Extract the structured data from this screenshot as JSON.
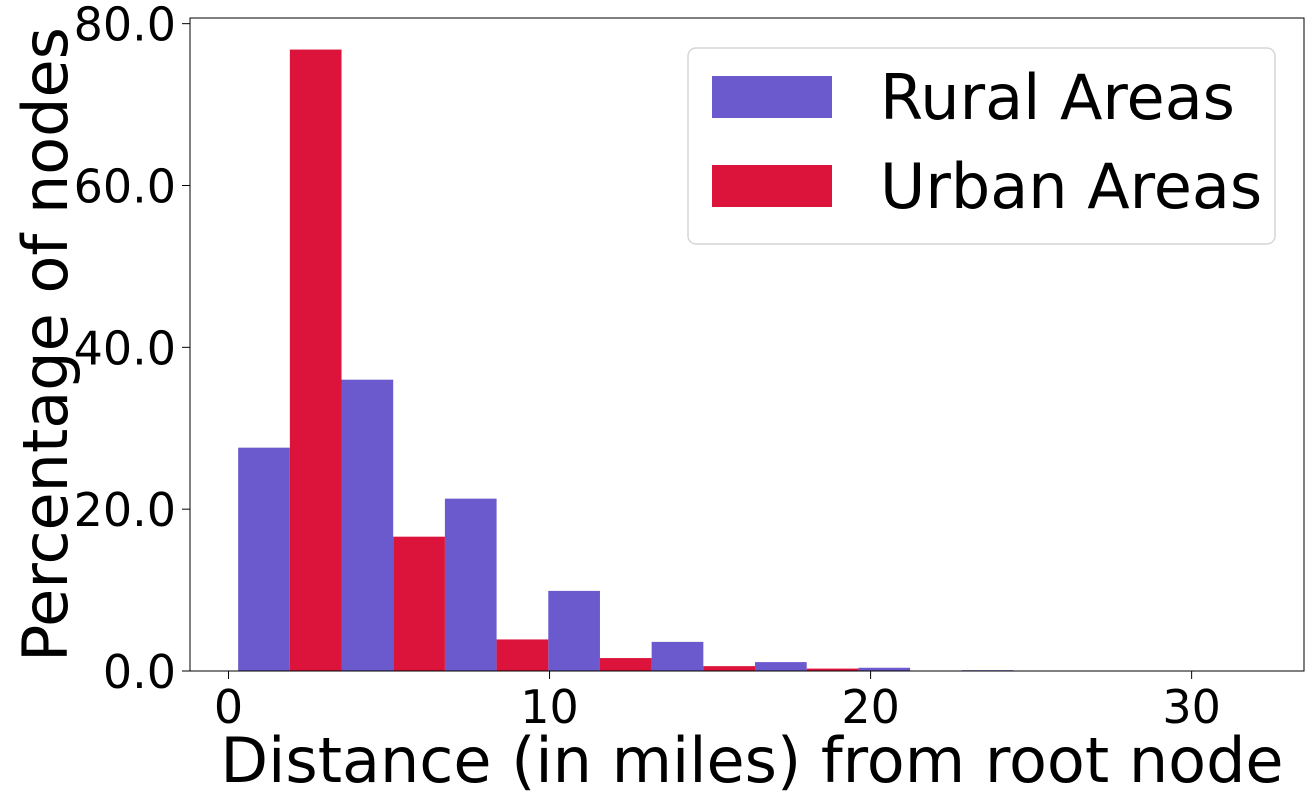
{
  "chart_data": {
    "type": "bar",
    "xlabel": "Distance (in miles) from root node",
    "ylabel": "Percentage of nodes",
    "xlim": [
      -1.2,
      33.5
    ],
    "ylim": [
      0,
      80.7
    ],
    "x_ticks": [
      0,
      10,
      20,
      30
    ],
    "x_tick_labels": [
      "0",
      "10",
      "20",
      "30"
    ],
    "y_ticks": [
      0,
      20,
      40,
      60,
      80
    ],
    "y_tick_labels": [
      "0.0",
      "20.0",
      "40.0",
      "60.0",
      "80.0"
    ],
    "grid": false,
    "legend_position": "top-right",
    "bin_edges": [
      0.3,
      3.52,
      6.74,
      9.96,
      13.18,
      16.4,
      19.62,
      22.84,
      26.06,
      29.28,
      32.5
    ],
    "colors": {
      "Rural Areas": "#6a5acd",
      "Urban Areas": "#dc143c"
    },
    "series": [
      {
        "name": "Rural Areas",
        "values": [
          27.6,
          36.0,
          21.3,
          9.9,
          3.6,
          1.1,
          0.4,
          0.1,
          0.0,
          0.0
        ]
      },
      {
        "name": "Urban Areas",
        "values": [
          76.8,
          16.6,
          3.9,
          1.6,
          0.6,
          0.3,
          0.0,
          0.0,
          0.0,
          0.0
        ]
      }
    ]
  }
}
